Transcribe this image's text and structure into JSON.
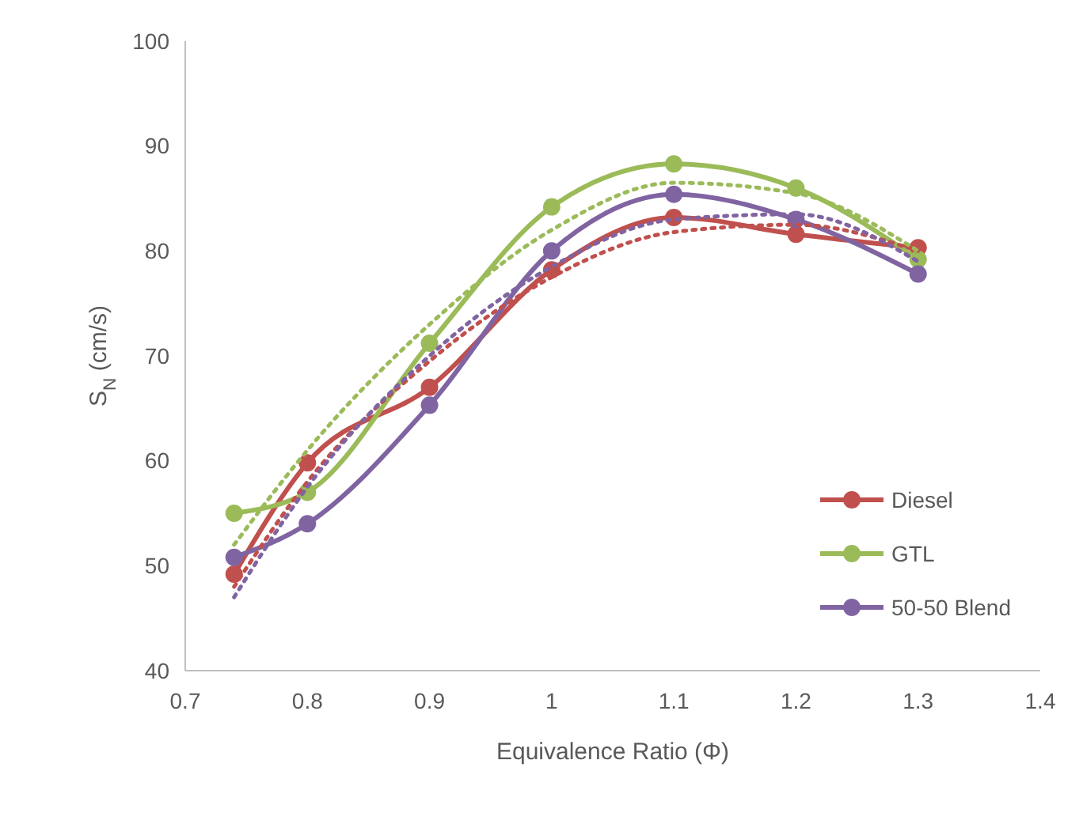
{
  "chart_data": {
    "type": "line",
    "xlabel": "Equivalence Ratio (Φ)",
    "ylabel": "S$_{N}$ (cm/s)",
    "x": [
      0.74,
      0.8,
      0.9,
      1.0,
      1.1,
      1.2,
      1.3
    ],
    "xlim": [
      0.7,
      1.4
    ],
    "xticks": [
      {
        "value": 0.7,
        "label": "0.7"
      },
      {
        "value": 0.8,
        "label": "0.8"
      },
      {
        "value": 0.9,
        "label": "0.9"
      },
      {
        "value": 1,
        "label": "1"
      },
      {
        "value": 1.1,
        "label": "1.1"
      },
      {
        "value": 1.2,
        "label": "1.2"
      },
      {
        "value": 1.3,
        "label": "1.3"
      },
      {
        "value": 1.4,
        "label": "1.4"
      }
    ],
    "ylim": [
      40,
      100
    ],
    "yticks": [
      40,
      50,
      60,
      70,
      80,
      90,
      100
    ],
    "grid": false,
    "legend": "right",
    "marker": "circle",
    "line_style": "solid",
    "series": [
      {
        "name": "Diesel",
        "color": "#c0504d",
        "values": [
          49.2,
          59.8,
          67,
          78.2,
          83.2,
          81.6,
          80.3
        ]
      },
      {
        "name": "GTL",
        "color": "#9bbb59",
        "values": [
          55,
          57,
          71.2,
          84.2,
          88.3,
          86,
          79.2
        ]
      },
      {
        "name": "50-50 Blend",
        "color": "#8064a2",
        "values": [
          50.8,
          54,
          65.3,
          80,
          85.4,
          83,
          77.8
        ]
      },
      {
        "type": "line",
        "color": "#c0504d",
        "line_style": "dotted",
        "marker": "none",
        "x": [
          0.74,
          0.8,
          0.9,
          1.0,
          1.1,
          1.2,
          1.3
        ],
        "values": [
          48,
          58,
          69.5,
          77.5,
          81.8,
          82.5,
          80
        ]
      },
      {
        "type": "line",
        "color": "#9bbb59",
        "line_style": "dotted",
        "marker": "none",
        "x": [
          0.74,
          0.8,
          0.9,
          1.0,
          1.1,
          1.2,
          1.3
        ],
        "values": [
          52,
          61,
          73,
          82,
          86.5,
          85.5,
          80
        ]
      },
      {
        "type": "line",
        "color": "#8064a2",
        "line_style": "dotted",
        "marker": "none",
        "x": [
          0.74,
          0.8,
          0.9,
          1.0,
          1.1,
          1.2,
          1.3
        ],
        "values": [
          47,
          57.5,
          70,
          78.5,
          83,
          83.5,
          79
        ]
      }
    ]
  }
}
